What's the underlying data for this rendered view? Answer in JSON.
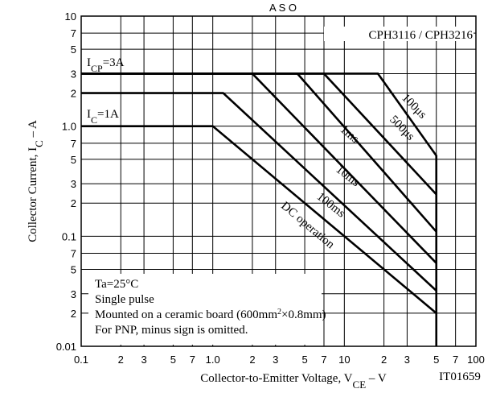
{
  "chart_data": {
    "type": "line",
    "title": "A S O",
    "xlabel": [
      "Collector-to-Emitter Voltage, V",
      "CE",
      " – V"
    ],
    "ylabel": [
      "Collector Current, I",
      "C",
      " – A"
    ],
    "annotations": {
      "part": "CPH3116 / CPH3216",
      "code": "IT01659",
      "icp": [
        "I",
        "CP",
        "=3A"
      ],
      "ic": [
        "I",
        "C",
        "=1A"
      ],
      "notes": [
        [
          "Ta=25°C"
        ],
        [
          "Single pulse"
        ],
        [
          "Mounted on a ceramic board (600mm",
          "2",
          "×0.8mm)"
        ],
        [
          "For PNP, minus sign is omitted."
        ]
      ]
    },
    "xscale": "log",
    "yscale": "log",
    "grid": true,
    "xlim": [
      0.1,
      100
    ],
    "ylim": [
      0.01,
      10
    ],
    "xticks": [
      0.1,
      {
        "value": 0.2,
        "label": "2"
      },
      {
        "value": 0.3,
        "label": "3"
      },
      {
        "value": 0.5,
        "label": "5"
      },
      {
        "value": 0.7,
        "label": "7"
      },
      {
        "value": 1,
        "label": "1.0"
      },
      {
        "value": 2,
        "label": "2"
      },
      {
        "value": 3,
        "label": "3"
      },
      {
        "value": 5,
        "label": "5"
      },
      {
        "value": 7,
        "label": "7"
      },
      10,
      {
        "value": 20,
        "label": "2"
      },
      {
        "value": 30,
        "label": "3"
      },
      {
        "value": 50,
        "label": "5"
      },
      {
        "value": 70,
        "label": "7"
      },
      100
    ],
    "yticks": [
      0.01,
      {
        "value": 0.02,
        "label": "2"
      },
      {
        "value": 0.03,
        "label": "3"
      },
      {
        "value": 0.05,
        "label": "5"
      },
      {
        "value": 0.07,
        "label": "7"
      },
      0.1,
      {
        "value": 0.2,
        "label": "2"
      },
      {
        "value": 0.3,
        "label": "3"
      },
      {
        "value": 0.5,
        "label": "5"
      },
      {
        "value": 0.7,
        "label": "7"
      },
      {
        "value": 1,
        "label": "1.0"
      },
      {
        "value": 2,
        "label": "2"
      },
      {
        "value": 3,
        "label": "3"
      },
      {
        "value": 5,
        "label": "5"
      },
      {
        "value": 7,
        "label": "7"
      },
      10
    ],
    "series": [
      {
        "name": "100μs",
        "color": "#000000",
        "x": [
          0.1,
          18,
          50,
          50
        ],
        "values": [
          3,
          3,
          0.54,
          0.01
        ]
      },
      {
        "name": "500μs",
        "color": "#000000",
        "x": [
          0.1,
          7,
          50
        ],
        "values": [
          3,
          3,
          0.24
        ]
      },
      {
        "name": "1ms",
        "color": "#000000",
        "x": [
          0.1,
          4.4,
          50
        ],
        "values": [
          3,
          3,
          0.11
        ]
      },
      {
        "name": "10ms",
        "color": "#000000",
        "x": [
          0.1,
          2,
          50
        ],
        "values": [
          3,
          3,
          0.057
        ]
      },
      {
        "name": "100ms",
        "color": "#000000",
        "x": [
          0.1,
          1.2,
          50
        ],
        "values": [
          2,
          2,
          0.032
        ]
      },
      {
        "name": "DC operation",
        "color": "#000000",
        "x": [
          0.1,
          1,
          50
        ],
        "values": [
          1,
          1,
          0.02
        ]
      }
    ]
  }
}
